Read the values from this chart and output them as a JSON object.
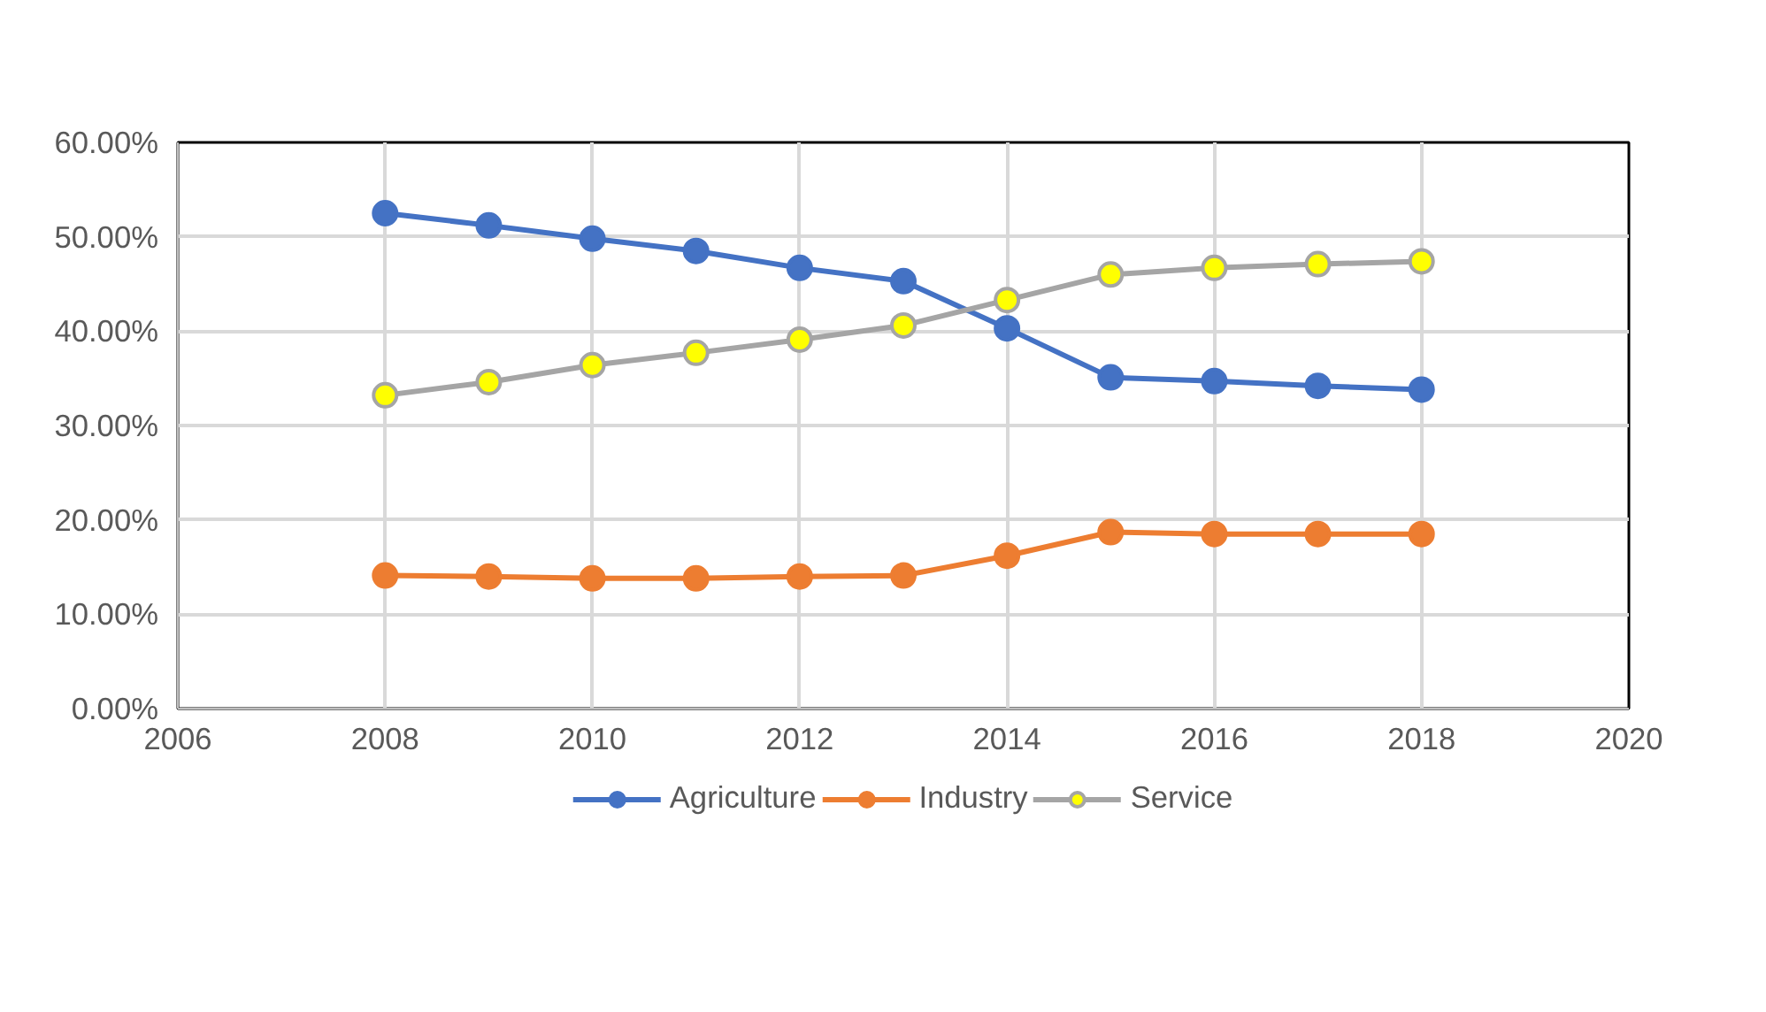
{
  "chart_data": {
    "type": "line",
    "x": [
      2008,
      2009,
      2010,
      2011,
      2012,
      2013,
      2014,
      2015,
      2016,
      2017,
      2018
    ],
    "series": [
      {
        "name": "Agriculture",
        "color": "#4472c4",
        "values": [
          52.5,
          51.2,
          49.8,
          48.5,
          46.7,
          45.3,
          40.3,
          35.1,
          34.7,
          34.2,
          33.8
        ]
      },
      {
        "name": "Industry",
        "color": "#ed7d31",
        "values": [
          14.1,
          14.0,
          13.8,
          13.8,
          14.0,
          14.1,
          16.2,
          18.7,
          18.5,
          18.5,
          18.5
        ]
      },
      {
        "name": "Service",
        "color": "#a5a5a5",
        "colors": [
          "#ffff00",
          "#ffff00",
          "#ffff00",
          "#ffff00",
          "#ffff00",
          "#ffff00",
          "#ffff00",
          "#ffff00",
          "#ffff00",
          "#ffff00",
          "#ffff00"
        ],
        "values": [
          33.2,
          34.6,
          36.4,
          37.7,
          39.1,
          40.6,
          43.3,
          46.0,
          46.7,
          47.1,
          47.4
        ]
      }
    ],
    "xlim": [
      2006,
      2020
    ],
    "xticks": [
      2006,
      2008,
      2010,
      2012,
      2014,
      2016,
      2018,
      2020
    ],
    "ylim": [
      0,
      60
    ],
    "yticks": [
      {
        "value": 0,
        "label": "0.00%"
      },
      {
        "value": 10,
        "label": "10.00%"
      },
      {
        "value": 20,
        "label": "20.00%"
      },
      {
        "value": 30,
        "label": "30.00%"
      },
      {
        "value": 40,
        "label": "40.00%"
      },
      {
        "value": 50,
        "label": "50.00%"
      },
      {
        "value": 60,
        "label": "60.00%"
      }
    ],
    "grid": true,
    "legend": "bottom",
    "marker": "circle",
    "line_style": "solid"
  }
}
